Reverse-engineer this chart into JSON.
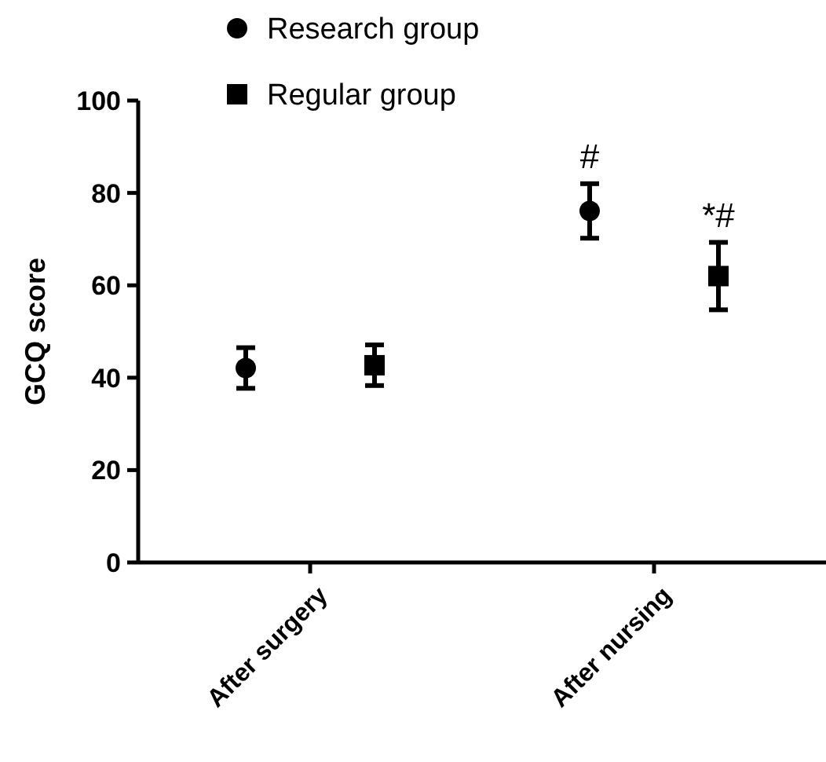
{
  "chart_data": {
    "type": "scatter",
    "ylabel": "GCQ score",
    "categories": [
      "After surgery",
      "After nursing"
    ],
    "ylim": [
      0,
      100
    ],
    "yticks": [
      0,
      20,
      40,
      60,
      80,
      100
    ],
    "legend": "top",
    "grid": false,
    "series": [
      {
        "name": "Research group",
        "color": "#000000",
        "marker": "circle",
        "values": [
          42.1,
          76.1
        ],
        "errors": [
          4.4,
          5.9
        ]
      },
      {
        "name": "Regular group",
        "color": "#000000",
        "marker": "square",
        "values": [
          42.7,
          62
        ],
        "errors": [
          4.4,
          7.3
        ]
      }
    ],
    "annotations": [
      "#",
      "*#"
    ]
  }
}
